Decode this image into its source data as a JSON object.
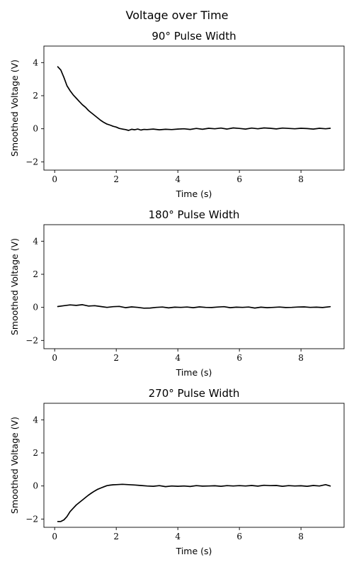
{
  "figure_title": "Voltage over Time",
  "chart_data": [
    {
      "type": "line",
      "title": "90° Pulse Width",
      "xlabel": "Time (s)",
      "ylabel": "Smoothed Voltage (V)",
      "xlim": [
        -0.35,
        9.4
      ],
      "ylim": [
        -2.5,
        5.0
      ],
      "xticks": [
        0,
        2,
        4,
        6,
        8
      ],
      "yticks": [
        -2,
        0,
        2,
        4
      ],
      "grid": false,
      "legend": "none",
      "color": "#000000",
      "series": [
        {
          "x": [
            0.1,
            0.2,
            0.3,
            0.4,
            0.5,
            0.6,
            0.7,
            0.8,
            0.9,
            1.0,
            1.1,
            1.2,
            1.3,
            1.4,
            1.5,
            1.6,
            1.7,
            1.8,
            1.9,
            2.0,
            2.1,
            2.2,
            2.3,
            2.4,
            2.5,
            2.6,
            2.7,
            2.8,
            2.9,
            3.0,
            3.2,
            3.4,
            3.6,
            3.8,
            4.0,
            4.2,
            4.4,
            4.6,
            4.8,
            5.0,
            5.2,
            5.4,
            5.6,
            5.8,
            6.0,
            6.2,
            6.4,
            6.6,
            6.8,
            7.0,
            7.2,
            7.4,
            7.6,
            7.8,
            8.0,
            8.2,
            8.4,
            8.6,
            8.8,
            8.95
          ],
          "y": [
            3.75,
            3.55,
            3.1,
            2.6,
            2.3,
            2.05,
            1.85,
            1.65,
            1.45,
            1.3,
            1.1,
            0.95,
            0.8,
            0.65,
            0.5,
            0.38,
            0.28,
            0.22,
            0.15,
            0.1,
            0.02,
            -0.02,
            -0.05,
            -0.1,
            -0.03,
            -0.06,
            -0.02,
            -0.08,
            -0.04,
            -0.05,
            -0.02,
            -0.06,
            -0.03,
            -0.05,
            -0.02,
            0.0,
            -0.04,
            0.02,
            -0.03,
            0.03,
            0.0,
            0.04,
            -0.02,
            0.05,
            0.02,
            -0.02,
            0.04,
            0.0,
            0.05,
            0.03,
            -0.01,
            0.04,
            0.02,
            0.0,
            0.03,
            0.01,
            -0.02,
            0.03,
            0.0,
            0.03
          ]
        }
      ]
    },
    {
      "type": "line",
      "title": "180° Pulse Width",
      "xlabel": "Time (s)",
      "ylabel": "Smoothed Voltage (V)",
      "xlim": [
        -0.35,
        9.4
      ],
      "ylim": [
        -2.5,
        5.0
      ],
      "xticks": [
        0,
        2,
        4,
        6,
        8
      ],
      "yticks": [
        -2,
        0,
        2,
        4
      ],
      "grid": false,
      "legend": "none",
      "color": "#000000",
      "series": [
        {
          "x": [
            0.1,
            0.3,
            0.5,
            0.7,
            0.9,
            1.1,
            1.3,
            1.5,
            1.7,
            1.9,
            2.1,
            2.3,
            2.5,
            2.7,
            2.9,
            3.1,
            3.3,
            3.5,
            3.7,
            3.9,
            4.1,
            4.3,
            4.5,
            4.7,
            4.9,
            5.1,
            5.3,
            5.5,
            5.7,
            5.9,
            6.1,
            6.3,
            6.5,
            6.7,
            6.9,
            7.1,
            7.3,
            7.5,
            7.7,
            7.9,
            8.1,
            8.3,
            8.5,
            8.7,
            8.95
          ],
          "y": [
            0.05,
            0.1,
            0.15,
            0.12,
            0.16,
            0.08,
            0.1,
            0.05,
            0.0,
            0.04,
            0.06,
            -0.02,
            0.03,
            0.0,
            -0.05,
            -0.04,
            0.0,
            0.02,
            -0.03,
            0.01,
            0.0,
            0.02,
            -0.02,
            0.03,
            0.0,
            -0.01,
            0.02,
            0.04,
            -0.02,
            0.01,
            0.0,
            0.02,
            -0.04,
            0.01,
            -0.02,
            0.0,
            0.02,
            -0.01,
            0.0,
            0.02,
            0.03,
            0.0,
            0.01,
            -0.01,
            0.04
          ]
        }
      ]
    },
    {
      "type": "line",
      "title": "270° Pulse Width",
      "xlabel": "Time (s)",
      "ylabel": "Smoothed Voltage (V)",
      "xlim": [
        -0.35,
        9.4
      ],
      "ylim": [
        -2.5,
        5.0
      ],
      "xticks": [
        0,
        2,
        4,
        6,
        8
      ],
      "yticks": [
        -2,
        0,
        2,
        4
      ],
      "grid": false,
      "legend": "none",
      "color": "#000000",
      "series": [
        {
          "x": [
            0.1,
            0.2,
            0.3,
            0.4,
            0.5,
            0.6,
            0.7,
            0.8,
            0.9,
            1.0,
            1.1,
            1.2,
            1.3,
            1.4,
            1.5,
            1.6,
            1.7,
            1.8,
            1.9,
            2.0,
            2.2,
            2.4,
            2.6,
            2.8,
            3.0,
            3.2,
            3.4,
            3.6,
            3.8,
            4.0,
            4.2,
            4.4,
            4.6,
            4.8,
            5.0,
            5.2,
            5.4,
            5.6,
            5.8,
            6.0,
            6.2,
            6.4,
            6.6,
            6.8,
            7.0,
            7.2,
            7.4,
            7.6,
            7.8,
            8.0,
            8.2,
            8.4,
            8.6,
            8.8,
            8.95
          ],
          "y": [
            -2.15,
            -2.15,
            -2.05,
            -1.85,
            -1.55,
            -1.35,
            -1.15,
            -1.0,
            -0.85,
            -0.7,
            -0.55,
            -0.42,
            -0.3,
            -0.2,
            -0.12,
            -0.05,
            0.02,
            0.05,
            0.07,
            0.08,
            0.1,
            0.08,
            0.06,
            0.03,
            0.0,
            -0.02,
            0.02,
            -0.04,
            0.0,
            -0.02,
            0.0,
            -0.03,
            0.02,
            -0.01,
            0.0,
            0.01,
            -0.02,
            0.02,
            0.0,
            0.02,
            0.0,
            0.03,
            -0.01,
            0.04,
            0.02,
            0.03,
            -0.02,
            0.02,
            0.0,
            0.01,
            -0.02,
            0.03,
            0.0,
            0.08,
            0.0
          ]
        }
      ]
    }
  ]
}
